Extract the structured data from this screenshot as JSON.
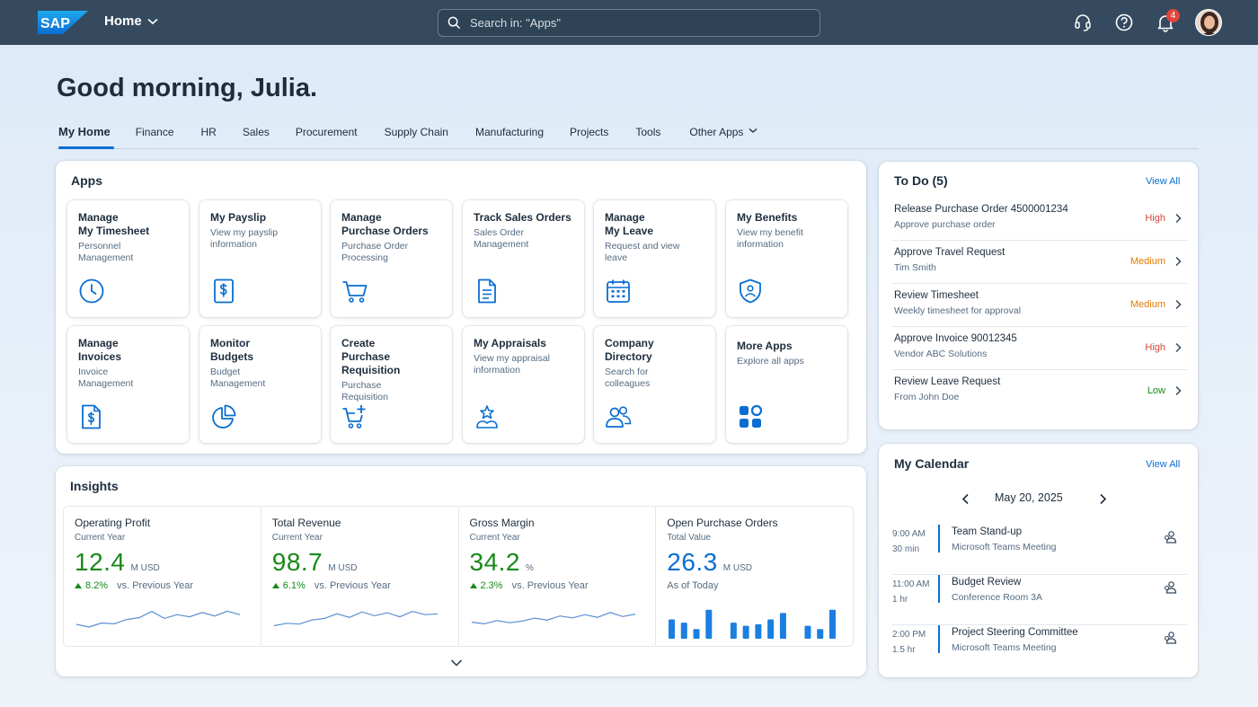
{
  "shell": {
    "logo_text": "SAP",
    "home_label": "Home",
    "search_placeholder": "Search in: \"Apps\"",
    "notification_count": "4"
  },
  "greeting": "Good morning, Julia.",
  "tabs": [
    {
      "label": "My Home",
      "active": true
    },
    {
      "label": "Finance"
    },
    {
      "label": "HR"
    },
    {
      "label": "Sales"
    },
    {
      "label": "Procurement"
    },
    {
      "label": "Supply Chain"
    },
    {
      "label": "Manufacturing"
    },
    {
      "label": "Projects"
    },
    {
      "label": "Tools"
    },
    {
      "label": "Other Apps"
    }
  ],
  "apps": {
    "title": "Apps",
    "tiles": [
      {
        "title": "Manage\nMy Timesheet",
        "sub": "Personnel\nManagement",
        "icon": "clock-icon"
      },
      {
        "title": "My Payslip",
        "sub": "View my payslip\ninformation",
        "icon": "payslip-icon"
      },
      {
        "title": "Manage\nPurchase Orders",
        "sub": "Purchase Order\nProcessing",
        "icon": "cart-icon"
      },
      {
        "title": "Track Sales Orders",
        "sub": "Sales Order\nManagement",
        "icon": "document-icon"
      },
      {
        "title": "Manage\nMy Leave",
        "sub": "Request and view\nleave",
        "icon": "calendar-icon"
      },
      {
        "title": "My Benefits",
        "sub": "View my benefit\ninformation",
        "icon": "shield-icon"
      },
      {
        "title": "Manage\nInvoices",
        "sub": "Invoice\nManagement",
        "icon": "invoice-icon"
      },
      {
        "title": "Monitor\nBudgets",
        "sub": "Budget\nManagement",
        "icon": "pie-chart-icon"
      },
      {
        "title": "Create\nPurchase Requisition",
        "sub": "Purchase\nRequisition",
        "icon": "cart-add-icon"
      },
      {
        "title": "My Appraisals",
        "sub": "View my appraisal\ninformation",
        "icon": "appraisal-icon"
      },
      {
        "title": "Company\nDirectory",
        "sub": "Search for\ncolleagues",
        "icon": "people-icon"
      },
      {
        "title": "More Apps",
        "sub": "Explore all apps",
        "icon": "grid-icon"
      }
    ]
  },
  "insights": {
    "title": "Insights",
    "kpis": [
      {
        "title": "Operating Profit",
        "sub": "Current Year",
        "value": "12.4",
        "unit": "M USD",
        "delta": "8.2%",
        "compare": "vs. Previous Year",
        "color": "#188918",
        "trend": [
          4,
          3,
          4.5,
          4.2,
          5.8,
          6.5,
          8.8,
          6.2,
          7.6,
          6.8,
          8.4,
          7.1,
          8.9,
          7.6
        ]
      },
      {
        "title": "Total Revenue",
        "sub": "Current Year",
        "value": "98.7",
        "unit": "M USD",
        "delta": "6.1%",
        "compare": "vs. Previous Year",
        "color": "#188918",
        "trend": [
          3.5,
          4.4,
          4.1,
          5.6,
          6.2,
          7.9,
          6.6,
          8.6,
          7.2,
          8.3,
          6.8,
          8.8,
          7.6,
          7.9
        ]
      },
      {
        "title": "Gross Margin",
        "sub": "Current Year",
        "value": "34.2",
        "unit": "%",
        "delta": "2.3%",
        "compare": "vs. Previous Year",
        "color": "#188918",
        "trend": [
          4.8,
          4.2,
          5.4,
          4.6,
          5.2,
          6.3,
          5.6,
          7.1,
          6.4,
          7.6,
          6.6,
          8.4,
          6.9,
          7.8
        ]
      },
      {
        "title": "Open Purchase Orders",
        "sub": "Total Value",
        "value": "26.3",
        "unit": "M USD",
        "compare": "As of Today",
        "color": "#0a6ed1",
        "bars": [
          6,
          5,
          3,
          9,
          0,
          5,
          4,
          4.5,
          6,
          8,
          0,
          4,
          3,
          9
        ]
      }
    ]
  },
  "todo": {
    "title": "To Do (5)",
    "view_all": "View All",
    "items": [
      {
        "title": "Release Purchase Order 4500001234",
        "sub": "Approve purchase order",
        "priority": "High",
        "color": "#d5473b"
      },
      {
        "title": "Approve Travel Request",
        "sub": "Tim Smith",
        "priority": "Medium",
        "color": "#e07b00"
      },
      {
        "title": "Review Timesheet",
        "sub": "Weekly timesheet for approval",
        "priority": "Medium",
        "color": "#e07b00"
      },
      {
        "title": "Approve Invoice 90012345",
        "sub": "Vendor ABC Solutions",
        "priority": "High",
        "color": "#d5473b"
      },
      {
        "title": "Review Leave Request",
        "sub": "From John Doe",
        "priority": "Low",
        "color": "#188918"
      }
    ]
  },
  "calendar": {
    "title": "My Calendar",
    "view_all": "View All",
    "date": "May 20, 2025",
    "events": [
      {
        "time": "9:00 AM",
        "duration": "30 min",
        "title": "Team Stand-up",
        "location": "Microsoft Teams Meeting"
      },
      {
        "time": "11:00 AM",
        "duration": "1 hr",
        "title": "Budget Review",
        "location": "Conference Room 3A"
      },
      {
        "time": "2:00 PM",
        "duration": "1.5 hr",
        "title": "Project Steering Committee",
        "location": "Microsoft Teams Meeting"
      }
    ]
  }
}
